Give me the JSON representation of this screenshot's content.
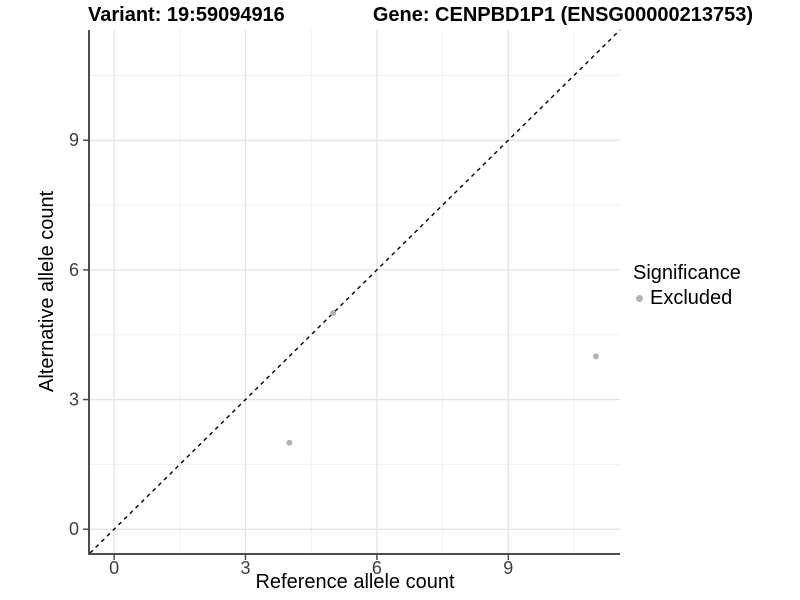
{
  "titles": {
    "left": "Variant: 19:59094916",
    "right": "Gene: CENPBD1P1 (ENSG00000213753)"
  },
  "chart_data": {
    "type": "scatter",
    "title": "Variant: 19:59094916 — Gene: CENPBD1P1 (ENSG00000213753)",
    "xlabel": "Reference allele count",
    "ylabel": "Alternative allele count",
    "xlim": [
      -0.55,
      11.55
    ],
    "ylim": [
      -0.55,
      11.55
    ],
    "xticks": [
      0,
      3,
      6,
      9
    ],
    "yticks": [
      0,
      3,
      6,
      9
    ],
    "minor_xticks": [
      1.5,
      4.5,
      7.5,
      10.5
    ],
    "minor_yticks": [
      1.5,
      4.5,
      7.5,
      10.5
    ],
    "grid": "major+minor",
    "reference_line": {
      "type": "identity",
      "slope": 1,
      "intercept": 0,
      "style": "dashed",
      "color": "#000000"
    },
    "series": [
      {
        "name": "Excluded",
        "color": "#b3b3b3",
        "points": [
          [
            4,
            2
          ],
          [
            5,
            5
          ],
          [
            11,
            4
          ]
        ]
      }
    ],
    "legend": {
      "title": "Significance",
      "position": "right",
      "items": [
        {
          "label": "Excluded",
          "color": "#b3b3b3"
        }
      ]
    }
  },
  "colors": {
    "grid_major": "#e3e3e3",
    "grid_minor": "#f0f0f0",
    "axis_line": "#4d4d4d",
    "tick_label": "#404040",
    "point": "#b3b3b3",
    "identity_line": "#000000"
  }
}
